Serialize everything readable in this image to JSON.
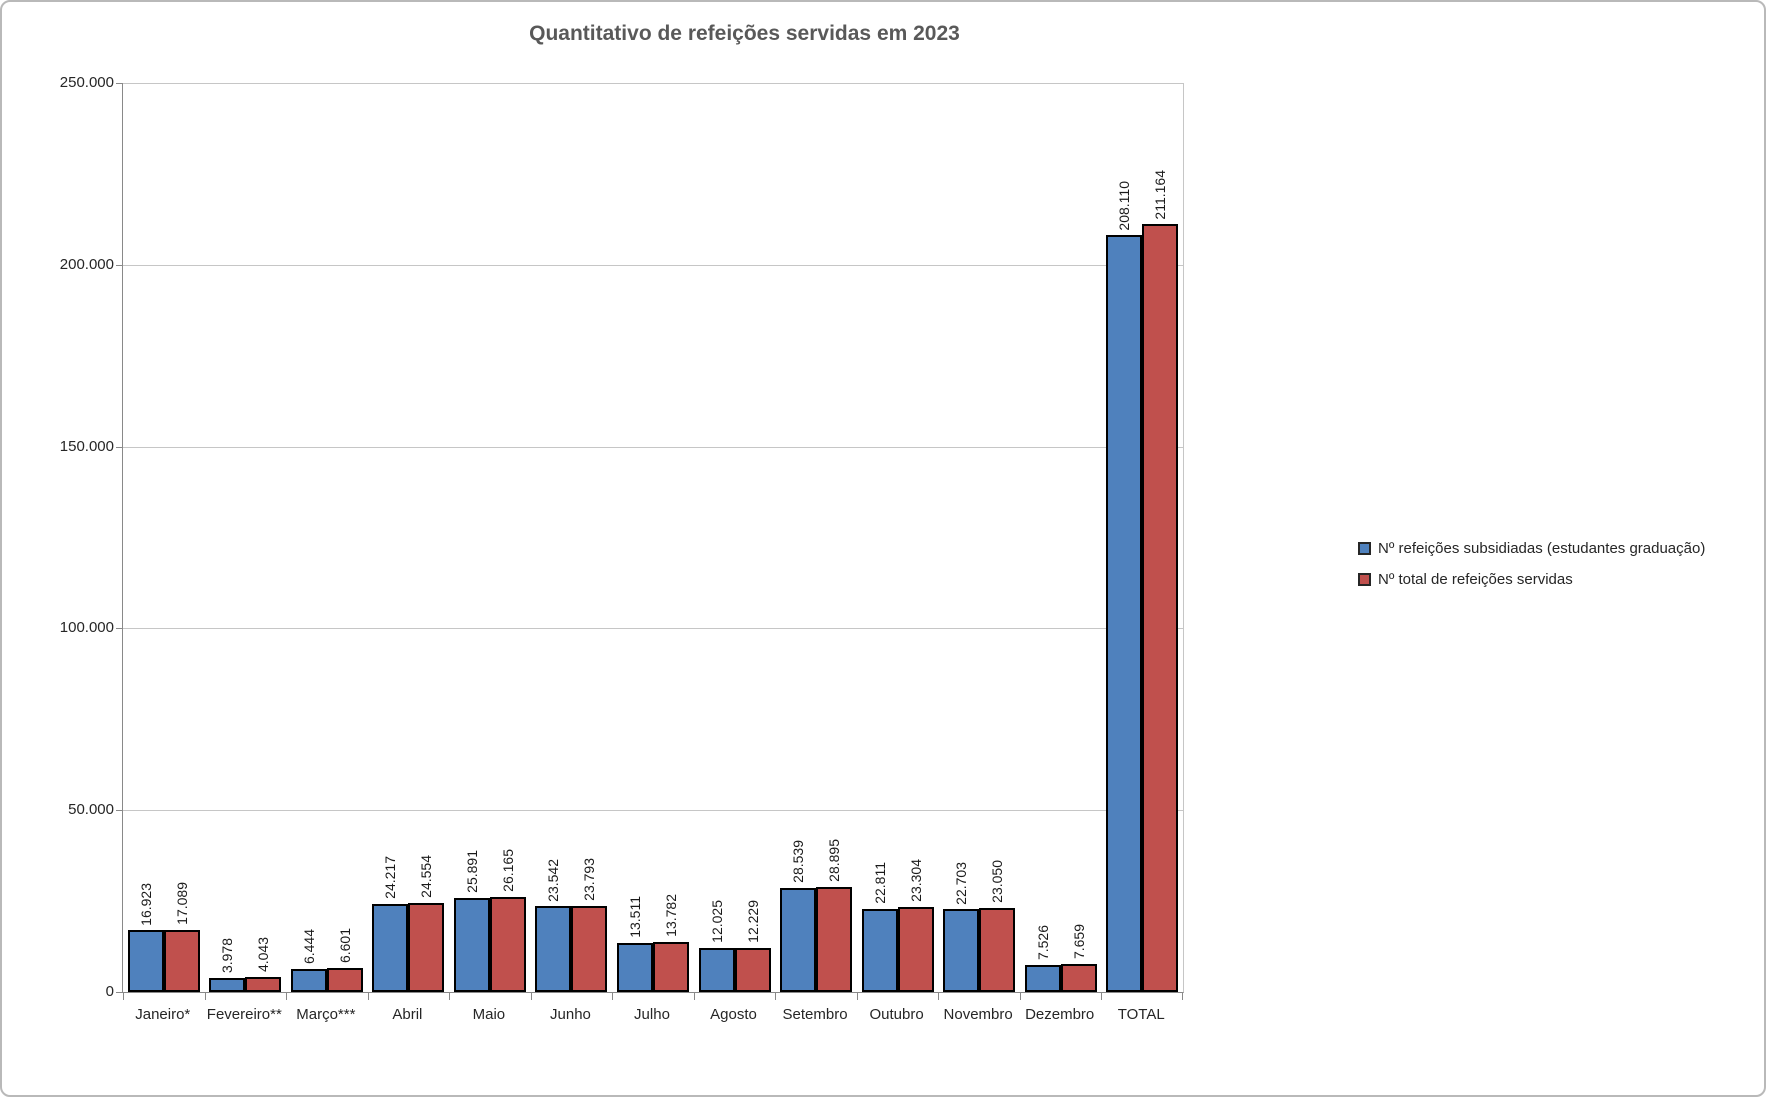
{
  "chart_data": {
    "type": "bar",
    "title": "Quantitativo de refeições servidas em 2023",
    "categories": [
      "Janeiro*",
      "Fevereiro**",
      "Março***",
      "Abril",
      "Maio",
      "Junho",
      "Julho",
      "Agosto",
      "Setembro",
      "Outubro",
      "Novembro",
      "Dezembro",
      "TOTAL"
    ],
    "series": [
      {
        "name": "Nº refeições subsidiadas (estudantes graduação)",
        "color": "#4F81BD",
        "values": [
          16923,
          3978,
          6444,
          24217,
          25891,
          23542,
          13511,
          12025,
          28539,
          22811,
          22703,
          7526,
          208110
        ],
        "data_labels": [
          "16.923",
          "3.978",
          "6.444",
          "24.217",
          "25.891",
          "23.542",
          "13.511",
          "12.025",
          "28.539",
          "22.811",
          "22.703",
          "7.526",
          "208.110"
        ]
      },
      {
        "name": "Nº total de refeições servidas",
        "color": "#C0504D",
        "values": [
          17089,
          4043,
          6601,
          24554,
          26165,
          23793,
          13782,
          12229,
          28895,
          23304,
          23050,
          7659,
          211164
        ],
        "data_labels": [
          "17.089",
          "4.043",
          "6.601",
          "24.554",
          "26.165",
          "23.793",
          "13.782",
          "12.229",
          "28.895",
          "23.304",
          "23.050",
          "7.659",
          "211.164"
        ]
      }
    ],
    "y_axis": {
      "min": 0,
      "max": 250000,
      "step": 50000,
      "tick_labels": [
        "0",
        "50.000",
        "100.000",
        "150.000",
        "200.000",
        "250.000"
      ]
    },
    "legend_position": "right",
    "grid": true,
    "data_labels_rotation": 90,
    "colors": {
      "series1": "#4F81BD",
      "series2": "#C0504D",
      "bar_border": "#000000",
      "gridline": "#C6C6C6",
      "axis_line": "#898989",
      "title_text": "#595959",
      "label_text": "#262626",
      "frame_border": "#B9B9B9"
    }
  }
}
